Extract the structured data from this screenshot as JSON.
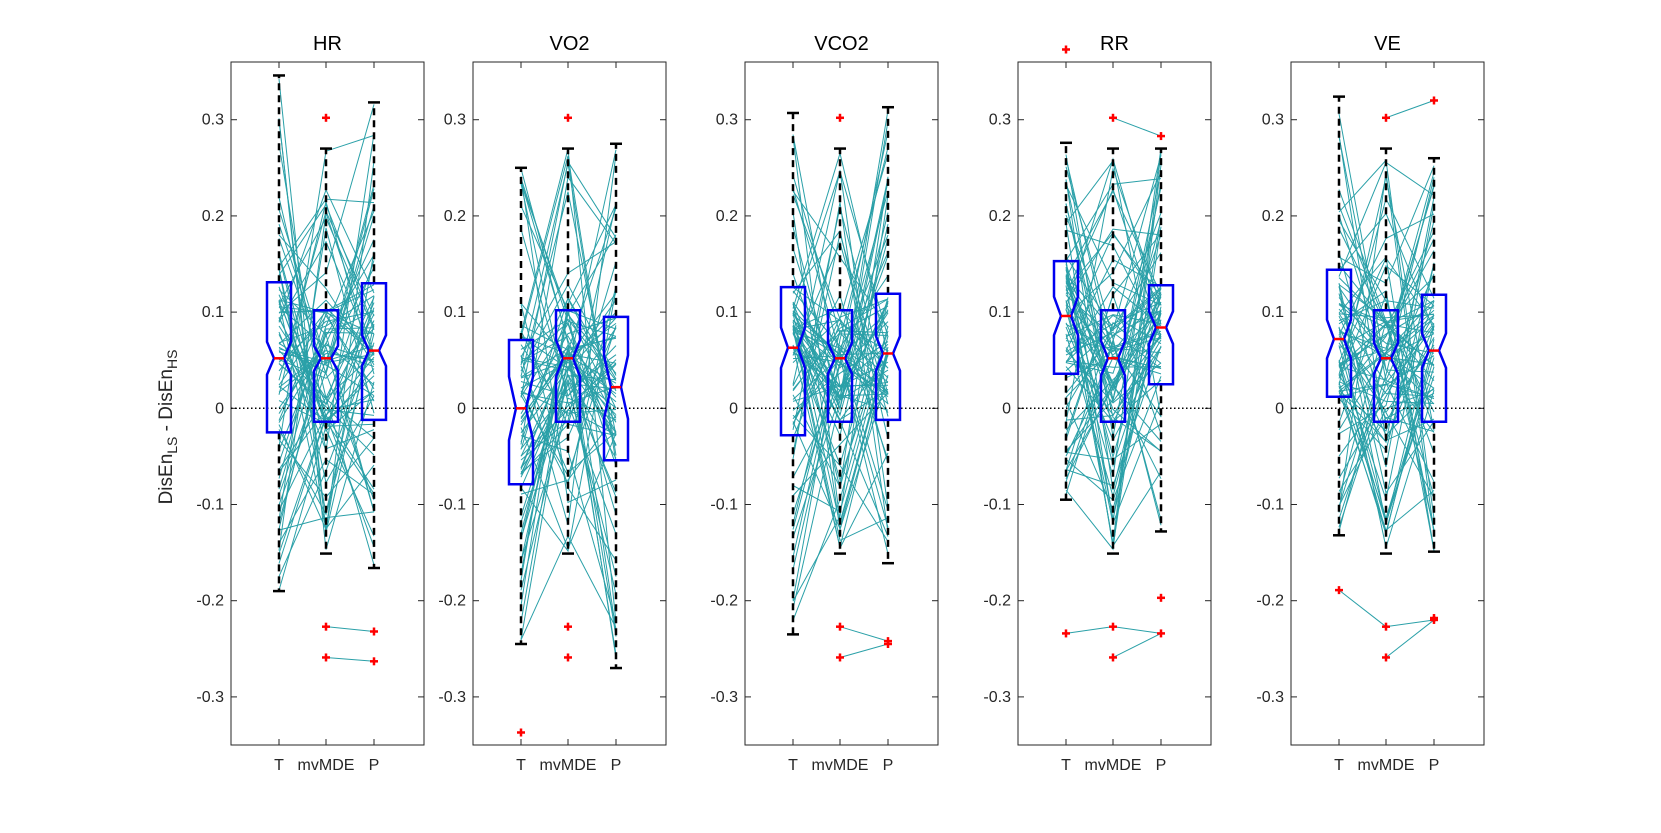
{
  "ylabel": {
    "main1": "DisEn",
    "sub1": "LS",
    "sep": " - ",
    "main2": "DisEn",
    "sub2": "HS"
  },
  "chart_data": [
    {
      "type": "boxplot",
      "title": "HR",
      "categories": [
        "T",
        "mvMDE",
        "P"
      ],
      "ylim": [
        -0.35,
        0.36
      ],
      "yticks": [
        -0.3,
        -0.2,
        -0.1,
        0,
        0.1,
        0.2,
        0.3
      ],
      "zero_line": "dotted",
      "notched": true,
      "boxes": [
        {
          "q1": -0.025,
          "median": 0.052,
          "q3": 0.131,
          "whisker_low": -0.19,
          "whisker_high": 0.346,
          "notch": [
            0.035,
            0.069
          ],
          "outliers": []
        },
        {
          "q1": -0.014,
          "median": 0.052,
          "q3": 0.102,
          "whisker_low": -0.151,
          "whisker_high": 0.27,
          "notch": [
            0.039,
            0.065
          ],
          "outliers": [
            0.302,
            -0.227,
            -0.259
          ]
        },
        {
          "q1": -0.012,
          "median": 0.06,
          "q3": 0.13,
          "whisker_low": -0.166,
          "whisker_high": 0.318,
          "notch": [
            0.044,
            0.076
          ],
          "outliers": [
            -0.232,
            -0.263
          ]
        }
      ]
    },
    {
      "type": "boxplot",
      "title": "VO2",
      "categories": [
        "T",
        "mvMDE",
        "P"
      ],
      "ylim": [
        -0.35,
        0.36
      ],
      "yticks": [
        -0.3,
        -0.2,
        -0.1,
        0,
        0.1,
        0.2,
        0.3
      ],
      "zero_line": "dotted",
      "notched": true,
      "boxes": [
        {
          "q1": -0.079,
          "median": 0.0,
          "q3": 0.071,
          "whisker_low": -0.245,
          "whisker_high": 0.25,
          "notch": [
            -0.033,
            0.033
          ],
          "outliers": [
            -0.337
          ]
        },
        {
          "q1": -0.014,
          "median": 0.052,
          "q3": 0.102,
          "whisker_low": -0.151,
          "whisker_high": 0.27,
          "notch": [
            0.033,
            0.071
          ],
          "outliers": [
            0.302,
            -0.227,
            -0.259
          ]
        },
        {
          "q1": -0.054,
          "median": 0.022,
          "q3": 0.095,
          "whisker_low": -0.27,
          "whisker_high": 0.275,
          "notch": [
            -0.011,
            0.055
          ],
          "outliers": []
        }
      ]
    },
    {
      "type": "boxplot",
      "title": "VCO2",
      "categories": [
        "T",
        "mvMDE",
        "P"
      ],
      "ylim": [
        -0.35,
        0.36
      ],
      "yticks": [
        -0.3,
        -0.2,
        -0.1,
        0,
        0.1,
        0.2,
        0.3
      ],
      "zero_line": "dotted",
      "notched": true,
      "boxes": [
        {
          "q1": -0.028,
          "median": 0.063,
          "q3": 0.126,
          "whisker_low": -0.235,
          "whisker_high": 0.307,
          "notch": [
            0.042,
            0.084
          ],
          "outliers": []
        },
        {
          "q1": -0.014,
          "median": 0.052,
          "q3": 0.102,
          "whisker_low": -0.151,
          "whisker_high": 0.27,
          "notch": [
            0.036,
            0.068
          ],
          "outliers": [
            0.302,
            -0.227,
            -0.259
          ]
        },
        {
          "q1": -0.012,
          "median": 0.057,
          "q3": 0.119,
          "whisker_low": -0.161,
          "whisker_high": 0.313,
          "notch": [
            0.039,
            0.075
          ],
          "outliers": [
            -0.242,
            -0.245
          ]
        }
      ]
    },
    {
      "type": "boxplot",
      "title": "RR",
      "categories": [
        "T",
        "mvMDE",
        "P"
      ],
      "ylim": [
        -0.35,
        0.36
      ],
      "yticks": [
        -0.3,
        -0.2,
        -0.1,
        0,
        0.1,
        0.2,
        0.3
      ],
      "zero_line": "dotted",
      "notched": true,
      "boxes": [
        {
          "q1": 0.036,
          "median": 0.096,
          "q3": 0.153,
          "whisker_low": -0.095,
          "whisker_high": 0.276,
          "notch": [
            0.076,
            0.116
          ],
          "outliers": [
            0.373,
            -0.234
          ]
        },
        {
          "q1": -0.014,
          "median": 0.052,
          "q3": 0.102,
          "whisker_low": -0.151,
          "whisker_high": 0.27,
          "notch": [
            0.034,
            0.07
          ],
          "outliers": [
            0.302,
            -0.227,
            -0.259
          ]
        },
        {
          "q1": 0.025,
          "median": 0.084,
          "q3": 0.128,
          "whisker_low": -0.128,
          "whisker_high": 0.27,
          "notch": [
            0.067,
            0.101
          ],
          "outliers": [
            0.283,
            -0.197,
            -0.234
          ]
        }
      ]
    },
    {
      "type": "boxplot",
      "title": "VE",
      "categories": [
        "T",
        "mvMDE",
        "P"
      ],
      "ylim": [
        -0.35,
        0.36
      ],
      "yticks": [
        -0.3,
        -0.2,
        -0.1,
        0,
        0.1,
        0.2,
        0.3
      ],
      "zero_line": "dotted",
      "notched": true,
      "boxes": [
        {
          "q1": 0.012,
          "median": 0.072,
          "q3": 0.144,
          "whisker_low": -0.132,
          "whisker_high": 0.324,
          "notch": [
            0.052,
            0.092
          ],
          "outliers": [
            -0.189
          ]
        },
        {
          "q1": -0.014,
          "median": 0.052,
          "q3": 0.102,
          "whisker_low": -0.151,
          "whisker_high": 0.27,
          "notch": [
            0.036,
            0.068
          ],
          "outliers": [
            0.302,
            -0.227,
            -0.259
          ]
        },
        {
          "q1": -0.014,
          "median": 0.06,
          "q3": 0.118,
          "whisker_low": -0.149,
          "whisker_high": 0.26,
          "notch": [
            0.042,
            0.078
          ],
          "outliers": [
            0.32,
            -0.218,
            -0.22
          ]
        }
      ]
    }
  ],
  "colors": {
    "box": "#0000f0",
    "median": "#ff0000",
    "whisker": "#000000",
    "outlier": "#ff0000",
    "paired_lines": "#2aa0a8",
    "axes": "#262626"
  }
}
